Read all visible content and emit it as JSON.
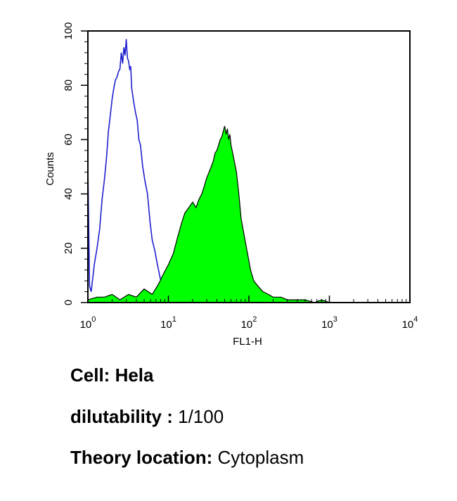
{
  "chart_data": {
    "type": "area",
    "xlabel": "FL1-H",
    "ylabel": "Counts",
    "xscale": "log",
    "xlim": [
      1,
      10000
    ],
    "ylim": [
      0,
      100
    ],
    "x_ticks": [
      {
        "base": "10",
        "exp": "0"
      },
      {
        "base": "10",
        "exp": "1"
      },
      {
        "base": "10",
        "exp": "2"
      },
      {
        "base": "10",
        "exp": "3"
      },
      {
        "base": "10",
        "exp": "4"
      }
    ],
    "y_ticks": [
      "0",
      "20",
      "40",
      "60",
      "80",
      "100"
    ],
    "grid": false,
    "series": [
      {
        "style": "outline",
        "color": "#1f1fd0",
        "x": [
          1.0,
          1.05,
          1.1,
          1.2,
          1.3,
          1.4,
          1.5,
          1.6,
          1.7,
          1.8,
          1.9,
          2.0,
          2.1,
          2.2,
          2.3,
          2.4,
          2.5,
          2.6,
          2.7,
          2.8,
          2.9,
          3.0,
          3.05,
          3.1,
          3.2,
          3.3,
          3.4,
          3.5,
          3.7,
          3.9,
          4.1,
          4.3,
          4.5,
          4.8,
          5.1,
          5.5,
          5.9,
          6.3,
          6.8,
          7.3,
          7.8,
          8.3,
          9.0,
          10.0
        ],
        "y": [
          50,
          6,
          4,
          14,
          20,
          27,
          38,
          45,
          53,
          63,
          69,
          75,
          79,
          82,
          83,
          85,
          86,
          92,
          88,
          94,
          91,
          97,
          93,
          90,
          89,
          86,
          87,
          79,
          74,
          70,
          67,
          60,
          58,
          50,
          45,
          40,
          30,
          23,
          19,
          14,
          10,
          6,
          2,
          0
        ]
      },
      {
        "style": "filled",
        "color": "#00ff00",
        "outline": "#000000",
        "x": [
          1.0,
          1.3,
          1.6,
          2.0,
          2.5,
          3.2,
          4.0,
          5.0,
          6.3,
          7.6,
          8.5,
          10.0,
          11.5,
          13.0,
          14.5,
          16.0,
          18.0,
          20.0,
          22.0,
          24.0,
          26.0,
          28.0,
          30.0,
          32.0,
          34.0,
          36.0,
          38.0,
          40.0,
          42.0,
          44.0,
          46.0,
          48.0,
          50.0,
          52.0,
          54.0,
          56.0,
          58.0,
          60.0,
          63.0,
          66.0,
          70.0,
          75.0,
          80.0,
          87.0,
          95.0,
          105.0,
          115.0,
          130.0,
          150.0,
          175.0,
          200.0,
          250.0,
          300.0,
          400.0,
          500.0,
          650.0,
          800.0,
          1000.0
        ],
        "y": [
          1,
          2,
          2,
          3,
          1,
          3,
          2,
          5,
          3,
          7,
          10,
          14,
          18,
          24,
          29,
          33,
          35,
          37,
          35,
          38,
          40,
          43,
          46,
          48,
          50,
          52,
          55,
          56,
          58,
          60,
          61,
          63,
          65,
          62,
          64,
          60,
          62,
          58,
          55,
          52,
          48,
          40,
          31,
          25,
          19,
          12,
          8,
          6,
          4,
          3,
          2,
          2,
          1,
          1,
          1,
          0,
          1,
          0
        ]
      }
    ]
  },
  "captions": {
    "cell": {
      "key": "Cell: Hela",
      "value": ""
    },
    "dilutability": {
      "key": "dilutability :",
      "value": " 1/100"
    },
    "location": {
      "key": "Theory location:",
      "value": " Cytoplasm"
    }
  }
}
